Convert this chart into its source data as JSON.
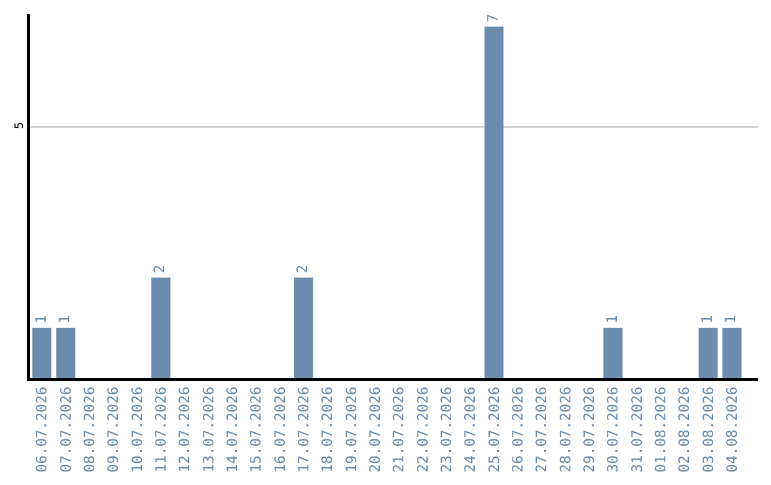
{
  "chart_data": {
    "type": "bar",
    "categories": [
      "06.07.2026",
      "07.07.2026",
      "08.07.2026",
      "09.07.2026",
      "10.07.2026",
      "11.07.2026",
      "12.07.2026",
      "13.07.2026",
      "14.07.2026",
      "15.07.2026",
      "16.07.2026",
      "17.07.2026",
      "18.07.2026",
      "19.07.2026",
      "20.07.2026",
      "21.07.2026",
      "22.07.2026",
      "23.07.2026",
      "24.07.2026",
      "25.07.2026",
      "26.07.2026",
      "27.07.2026",
      "28.07.2026",
      "29.07.2026",
      "30.07.2026",
      "31.07.2026",
      "01.08.2026",
      "02.08.2026",
      "03.08.2026",
      "04.08.2026"
    ],
    "values": [
      1,
      1,
      0,
      0,
      0,
      2,
      0,
      0,
      0,
      0,
      0,
      2,
      0,
      0,
      0,
      0,
      0,
      0,
      0,
      7,
      0,
      0,
      0,
      0,
      1,
      0,
      0,
      0,
      1,
      1
    ],
    "value_labels": [
      "1",
      "1",
      null,
      null,
      null,
      "2",
      null,
      null,
      null,
      null,
      null,
      "2",
      null,
      null,
      null,
      null,
      null,
      null,
      null,
      "7",
      null,
      null,
      null,
      null,
      "1",
      null,
      null,
      null,
      "1",
      "1"
    ],
    "color": "#6b8cac",
    "ylim": [
      0,
      7.25
    ],
    "yticks": [
      5
    ],
    "grid": "y",
    "legend": false
  }
}
